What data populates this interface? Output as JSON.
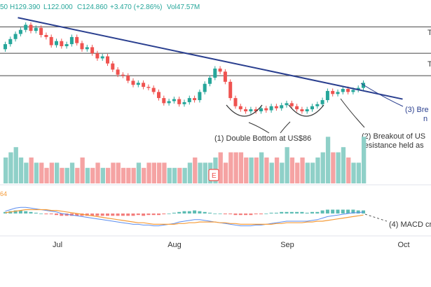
{
  "header": {
    "open_fragment": "50",
    "high": "H129.390",
    "low": "L122.000",
    "close": "C124.860",
    "change": "+3.470 (+2.86%)",
    "volume": "Vol47.57M"
  },
  "colors": {
    "up": "#26a69a",
    "down": "#ef5350",
    "up_vol": "#8fd0c8",
    "down_vol": "#f5a3a3",
    "trendline": "#2a3f8f",
    "macd": "#5b8def",
    "signal": "#f59c3a",
    "hline": "#444444",
    "annotation": "#333333",
    "annotation_blue": "#2a3f8f"
  },
  "annotations": {
    "double_bottom": "(1) Double Bottom at US$86",
    "breakout_line1": "(2) Breakout of US",
    "breakout_line2": "resistance held as",
    "trend_break_line1": "(3) Bre",
    "trend_break_line2": "n",
    "macd_cross": "(4) MACD cr",
    "level_top": "T",
    "level_mid": "T",
    "macd_value_fragment": "64",
    "earnings_marker": "E"
  },
  "chart_data": {
    "type": "candlestick",
    "x_axis_labels": [
      "Jul",
      "Aug",
      "Sep",
      "Oct"
    ],
    "candles": [
      {
        "o": 116.0,
        "c": 118.5
      },
      {
        "o": 118.5,
        "c": 121.0
      },
      {
        "o": 121.0,
        "c": 123.5
      },
      {
        "o": 123.5,
        "c": 125.5
      },
      {
        "o": 125.5,
        "c": 128.0
      },
      {
        "o": 128.0,
        "c": 125.0
      },
      {
        "o": 125.0,
        "c": 126.5
      },
      {
        "o": 126.5,
        "c": 123.0
      },
      {
        "o": 123.0,
        "c": 122.0
      },
      {
        "o": 122.0,
        "c": 118.0
      },
      {
        "o": 118.0,
        "c": 120.0
      },
      {
        "o": 120.0,
        "c": 117.5
      },
      {
        "o": 117.5,
        "c": 118.5
      },
      {
        "o": 118.5,
        "c": 122.0
      },
      {
        "o": 122.0,
        "c": 119.0
      },
      {
        "o": 119.0,
        "c": 116.0
      },
      {
        "o": 116.0,
        "c": 117.0
      },
      {
        "o": 117.0,
        "c": 114.0
      },
      {
        "o": 114.0,
        "c": 111.5
      },
      {
        "o": 111.5,
        "c": 112.5
      },
      {
        "o": 112.5,
        "c": 109.0
      },
      {
        "o": 109.0,
        "c": 106.0
      },
      {
        "o": 106.0,
        "c": 103.5
      },
      {
        "o": 103.5,
        "c": 103.0
      },
      {
        "o": 103.0,
        "c": 100.5
      },
      {
        "o": 100.5,
        "c": 98.5
      },
      {
        "o": 98.5,
        "c": 99.5
      },
      {
        "o": 99.5,
        "c": 97.5
      },
      {
        "o": 97.5,
        "c": 97.0
      },
      {
        "o": 97.0,
        "c": 95.0
      },
      {
        "o": 95.0,
        "c": 92.0
      },
      {
        "o": 92.0,
        "c": 89.5
      },
      {
        "o": 89.5,
        "c": 90.5
      },
      {
        "o": 90.5,
        "c": 91.5
      },
      {
        "o": 91.5,
        "c": 89.0
      },
      {
        "o": 89.0,
        "c": 90.0
      },
      {
        "o": 90.0,
        "c": 92.0
      },
      {
        "o": 92.0,
        "c": 91.0
      },
      {
        "o": 91.0,
        "c": 95.0
      },
      {
        "o": 95.0,
        "c": 99.0
      },
      {
        "o": 99.0,
        "c": 102.0
      },
      {
        "o": 102.0,
        "c": 106.5
      },
      {
        "o": 106.5,
        "c": 105.0
      },
      {
        "o": 105.0,
        "c": 100.0
      },
      {
        "o": 100.0,
        "c": 92.0
      },
      {
        "o": 92.0,
        "c": 88.0
      },
      {
        "o": 88.0,
        "c": 86.5
      },
      {
        "o": 86.5,
        "c": 85.5
      },
      {
        "o": 85.5,
        "c": 86.5
      },
      {
        "o": 86.5,
        "c": 85.5
      },
      {
        "o": 85.5,
        "c": 87.0
      },
      {
        "o": 87.0,
        "c": 86.0
      },
      {
        "o": 86.0,
        "c": 88.0
      },
      {
        "o": 88.0,
        "c": 87.0
      },
      {
        "o": 87.0,
        "c": 88.5
      },
      {
        "o": 88.5,
        "c": 89.5
      },
      {
        "o": 89.5,
        "c": 88.0
      },
      {
        "o": 88.0,
        "c": 86.5
      },
      {
        "o": 86.5,
        "c": 85.5
      },
      {
        "o": 85.5,
        "c": 86.5
      },
      {
        "o": 86.5,
        "c": 88.0
      },
      {
        "o": 88.0,
        "c": 89.0
      },
      {
        "o": 89.0,
        "c": 91.0
      },
      {
        "o": 91.0,
        "c": 95.5
      },
      {
        "o": 95.5,
        "c": 94.0
      },
      {
        "o": 94.0,
        "c": 95.0
      },
      {
        "o": 95.0,
        "c": 96.5
      },
      {
        "o": 96.5,
        "c": 95.0
      },
      {
        "o": 95.0,
        "c": 96.0
      },
      {
        "o": 96.0,
        "c": 97.0
      },
      {
        "o": 97.0,
        "c": 99.5
      }
    ],
    "volume": [
      5,
      6,
      7,
      5,
      4,
      5,
      4,
      4,
      3,
      4,
      4,
      3,
      3,
      4,
      3,
      5,
      3,
      3,
      4,
      3,
      3,
      4,
      4,
      3,
      3,
      3,
      4,
      3,
      4,
      4,
      4,
      4,
      3,
      3,
      3,
      3,
      4,
      5,
      4,
      4,
      4,
      5,
      6,
      4,
      6,
      6,
      6,
      5,
      5,
      5,
      6,
      5,
      4,
      5,
      4,
      7,
      5,
      4,
      5,
      4,
      4,
      5,
      6,
      9,
      6,
      6,
      7,
      5,
      4,
      4,
      9
    ],
    "macd": [
      0.3,
      0.5,
      0.7,
      0.8,
      0.8,
      0.7,
      0.6,
      0.5,
      0.4,
      0.3,
      0.2,
      0.0,
      -0.1,
      -0.2,
      -0.3,
      -0.4,
      -0.5,
      -0.6,
      -0.7,
      -0.8,
      -0.9,
      -1.0,
      -1.1,
      -1.2,
      -1.3,
      -1.4,
      -1.4,
      -1.5,
      -1.5,
      -1.6,
      -1.6,
      -1.5,
      -1.4,
      -1.3,
      -1.1,
      -1.0,
      -0.9,
      -0.8,
      -0.8,
      -0.9,
      -1.0,
      -1.1,
      -1.2,
      -1.3,
      -1.4,
      -1.5,
      -1.6,
      -1.6,
      -1.6,
      -1.5,
      -1.5,
      -1.4,
      -1.3,
      -1.2,
      -1.1,
      -1.0,
      -1.0,
      -1.0,
      -1.0,
      -1.0,
      -0.9,
      -0.8,
      -0.6,
      -0.4,
      -0.3,
      -0.2,
      -0.1,
      0.0,
      0.1,
      0.1,
      0.2
    ],
    "signal": [
      0.1,
      0.2,
      0.3,
      0.4,
      0.5,
      0.5,
      0.5,
      0.5,
      0.5,
      0.4,
      0.4,
      0.3,
      0.2,
      0.1,
      0.0,
      -0.1,
      -0.2,
      -0.3,
      -0.4,
      -0.5,
      -0.6,
      -0.7,
      -0.8,
      -0.9,
      -1.0,
      -1.1,
      -1.2,
      -1.2,
      -1.3,
      -1.4,
      -1.4,
      -1.4,
      -1.4,
      -1.4,
      -1.3,
      -1.3,
      -1.2,
      -1.2,
      -1.1,
      -1.1,
      -1.1,
      -1.1,
      -1.2,
      -1.2,
      -1.3,
      -1.3,
      -1.4,
      -1.4,
      -1.4,
      -1.4,
      -1.4,
      -1.4,
      -1.4,
      -1.3,
      -1.3,
      -1.2,
      -1.2,
      -1.2,
      -1.2,
      -1.1,
      -1.1,
      -1.0,
      -1.0,
      -0.9,
      -0.8,
      -0.7,
      -0.6,
      -0.5,
      -0.4,
      -0.3,
      -0.2
    ],
    "horizontal_levels": [
      127.0,
      114.0,
      103.0
    ],
    "trendline": [
      {
        "i": 0,
        "v": 131.5
      },
      {
        "i": 70,
        "v": 96.0
      }
    ],
    "y_range": [
      80,
      134
    ]
  }
}
